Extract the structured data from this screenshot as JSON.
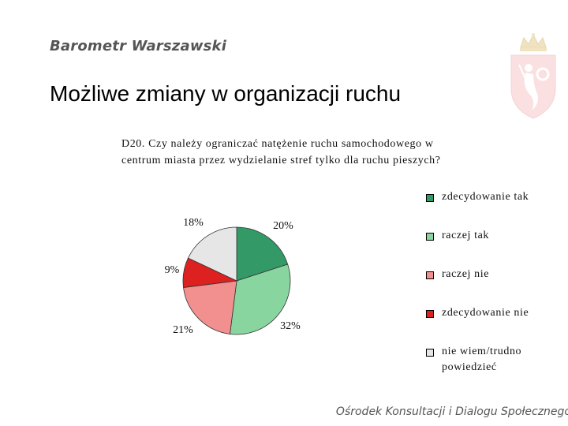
{
  "header": {
    "brand": "Barometr Warszawski"
  },
  "slide": {
    "title": "Możliwe zmiany w organizacji ruchu"
  },
  "question": {
    "line1": "D20. Czy należy ograniczać natężenie ruchu samochodowego w",
    "line2": "centrum miasta przez wydzielanie stref tylko dla ruchu pieszych?"
  },
  "chart_data": {
    "type": "pie",
    "slices": [
      {
        "label": "zdecydowanie tak",
        "value": 20,
        "value_label": "20%",
        "color": "#339966"
      },
      {
        "label": "raczej tak",
        "value": 32,
        "value_label": "32%",
        "color": "#88d59f"
      },
      {
        "label": "raczej nie",
        "value": 21,
        "value_label": "21%",
        "color": "#f29090"
      },
      {
        "label": "zdecydowanie nie",
        "value": 9,
        "value_label": "9%",
        "color": "#dd2020"
      },
      {
        "label": "nie wiem/trudno powiedzieć",
        "value": 18,
        "value_label": "18%",
        "color": "#e6e6e6"
      }
    ],
    "legend_position": "right"
  },
  "footer": {
    "text": "Ośrodek Konsultacji i Dialogu Społecznego"
  }
}
